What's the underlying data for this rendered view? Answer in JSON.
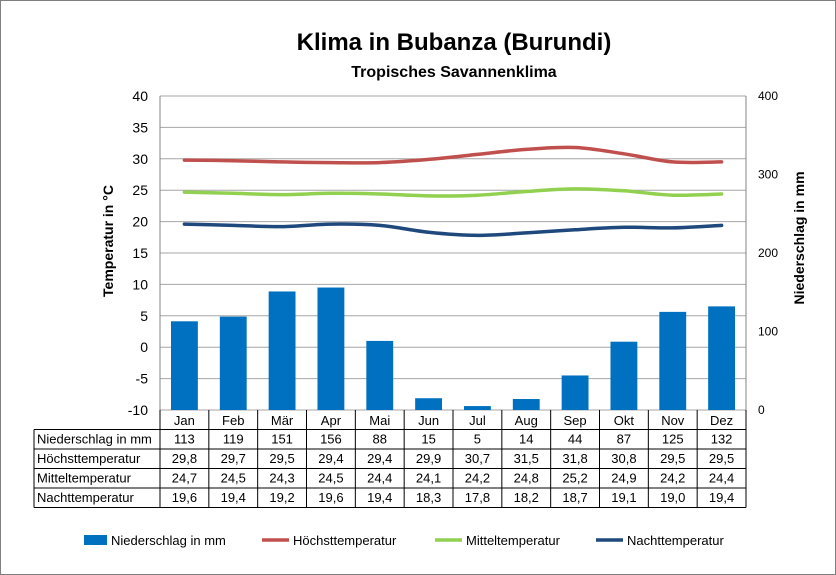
{
  "chart_data": {
    "type": "bar",
    "title": "Klima in Bubanza (Burundi)",
    "subtitle": "Tropisches Savannenklima",
    "ylabel": "Temperatur in °C",
    "y2label": "Niederschlag in mm",
    "ylim": [
      -10,
      40
    ],
    "y2lim": [
      0,
      400
    ],
    "yticks": [
      "40",
      "35",
      "30",
      "25",
      "20",
      "15",
      "10",
      "5",
      "0",
      "-5",
      "-10"
    ],
    "y2ticks": [
      "400",
      "300",
      "200",
      "100",
      "0"
    ],
    "grid": true,
    "legend_position": "bottom",
    "categories": [
      "Jan",
      "Feb",
      "Mär",
      "Apr",
      "Mai",
      "Jun",
      "Jul",
      "Aug",
      "Sep",
      "Okt",
      "Nov",
      "Dez"
    ],
    "series": [
      {
        "name": "Niederschlag in mm",
        "type": "bar",
        "axis": "right",
        "color": "#0070C0",
        "values": [
          113,
          119,
          151,
          156,
          88,
          15,
          5,
          14,
          44,
          87,
          125,
          132
        ],
        "labels": [
          "113",
          "119",
          "151",
          "156",
          "88",
          "15",
          "5",
          "14",
          "44",
          "87",
          "125",
          "132"
        ]
      },
      {
        "name": "Höchsttemperatur",
        "type": "line",
        "axis": "left",
        "color": "#C0504D",
        "values": [
          29.8,
          29.7,
          29.5,
          29.4,
          29.4,
          29.9,
          30.7,
          31.5,
          31.8,
          30.8,
          29.5,
          29.5
        ],
        "labels": [
          "29,8",
          "29,7",
          "29,5",
          "29,4",
          "29,4",
          "29,9",
          "30,7",
          "31,5",
          "31,8",
          "30,8",
          "29,5",
          "29,5"
        ]
      },
      {
        "name": "Mitteltemperatur",
        "type": "line",
        "axis": "left",
        "color": "#92D050",
        "values": [
          24.7,
          24.5,
          24.3,
          24.5,
          24.4,
          24.1,
          24.2,
          24.8,
          25.2,
          24.9,
          24.2,
          24.4
        ],
        "labels": [
          "24,7",
          "24,5",
          "24,3",
          "24,5",
          "24,4",
          "24,1",
          "24,2",
          "24,8",
          "25,2",
          "24,9",
          "24,2",
          "24,4"
        ]
      },
      {
        "name": "Nachttemperatur",
        "type": "line",
        "axis": "left",
        "color": "#1F497D",
        "values": [
          19.6,
          19.4,
          19.2,
          19.6,
          19.4,
          18.3,
          17.8,
          18.2,
          18.7,
          19.1,
          19.0,
          19.4
        ],
        "labels": [
          "19,6",
          "19,4",
          "19,2",
          "19,6",
          "19,4",
          "18,3",
          "17,8",
          "18,2",
          "18,7",
          "19,1",
          "19,0",
          "19,4"
        ]
      }
    ]
  }
}
